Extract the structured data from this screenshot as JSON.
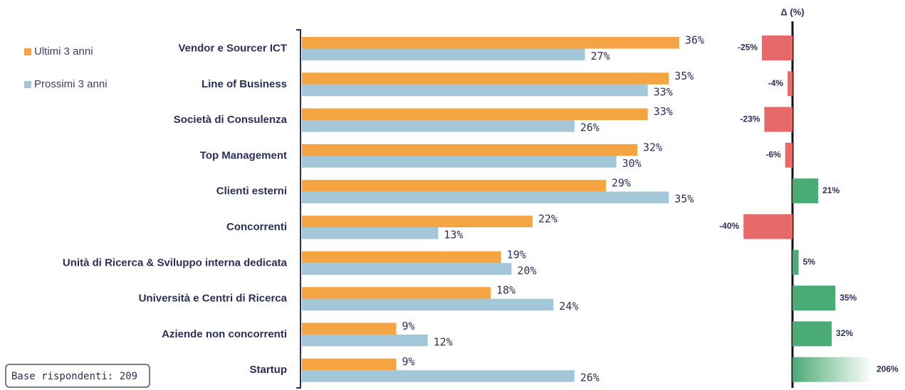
{
  "chart_data": {
    "type": "hbar",
    "categories": [
      "Vendor e Sourcer ICT",
      "Line of Business",
      "Società di Consulenza",
      "Top Management",
      "Clienti esterni",
      "Concorrenti",
      "Unità di Ricerca & Sviluppo interna dedicata",
      "Università e Centri di Ricerca",
      "Aziende non concorrenti",
      "Startup"
    ],
    "series": [
      {
        "name": "Ultimi 3 anni",
        "color": "#f4a442",
        "values": [
          36,
          35,
          33,
          32,
          29,
          22,
          19,
          18,
          9,
          9
        ],
        "value_labels": [
          "36%",
          "35%",
          "33%",
          "32%",
          "29%",
          "22%",
          "19%",
          "18%",
          "9%",
          "9%"
        ]
      },
      {
        "name": "Prossimi 3 anni",
        "color": "#a3c6d8",
        "values": [
          27,
          33,
          26,
          30,
          35,
          13,
          20,
          24,
          12,
          26
        ],
        "value_labels": [
          "27%",
          "33%",
          "26%",
          "30%",
          "35%",
          "13%",
          "20%",
          "24%",
          "12%",
          "26%"
        ]
      }
    ],
    "legend": "left",
    "delta": {
      "title": "Δ (%)",
      "values": [
        -25,
        -4,
        -23,
        -6,
        21,
        -40,
        5,
        35,
        32,
        206
      ],
      "value_labels": [
        "-25%",
        "-4%",
        "-23%",
        "-6%",
        "21%",
        "-40%",
        "5%",
        "35%",
        "32%",
        "206%"
      ],
      "positive_color": "#4aab74",
      "negative_color": "#e8696a"
    },
    "annotation": "Base rispondenti: 209"
  }
}
